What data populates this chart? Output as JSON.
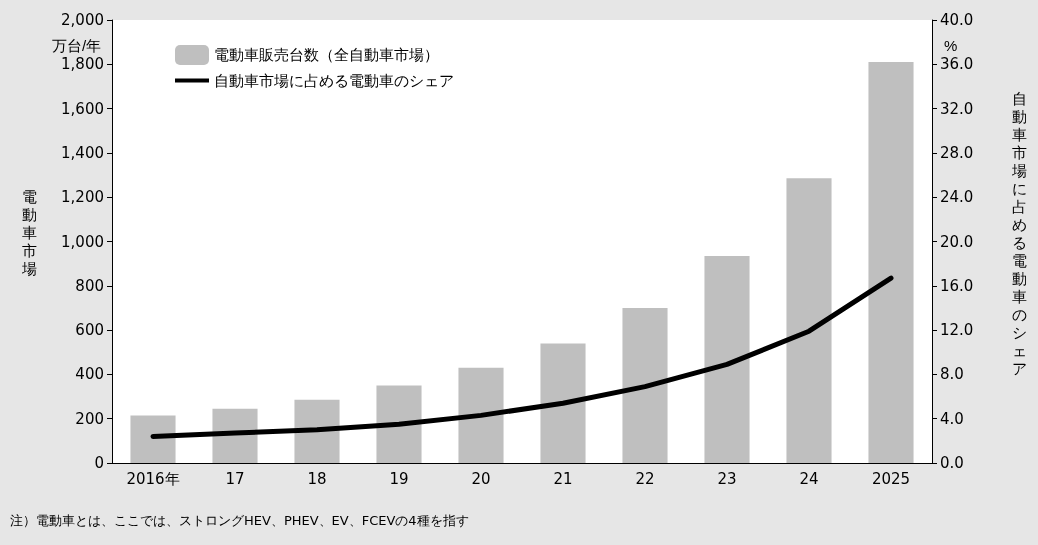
{
  "chart_data": {
    "type": "bar",
    "ylabel": "電動車市場",
    "y2label": "自動車市場に占める電動車のシェア",
    "annotations": [
      "万台/年",
      "%",
      "注）電動車とは、ここでは、ストロングHEV、PHEV、EV、FCEVの4種を指す"
    ],
    "categories": [
      "2016年",
      "17",
      "18",
      "19",
      "20",
      "21",
      "22",
      "23",
      "24",
      "2025"
    ],
    "series": [
      {
        "name": "電動車販売台数（全自動車市場）",
        "color": "#bfbfbf",
        "values": [
          215,
          245,
          285,
          350,
          430,
          540,
          700,
          935,
          1285,
          1810
        ]
      },
      {
        "name": "自動車市場に占める電動車のシェア",
        "type": "line",
        "axis": "y2",
        "color": "#000000",
        "values": [
          2.4,
          2.7,
          3.0,
          3.5,
          4.3,
          5.4,
          6.9,
          8.9,
          11.9,
          16.7
        ]
      }
    ],
    "ylim": [
      0,
      2000
    ],
    "yticks": [
      0,
      200,
      400,
      600,
      800,
      {
        "value": 1000,
        "label": "1,000"
      },
      {
        "value": 1200,
        "label": "1,200"
      },
      {
        "value": 1400,
        "label": "1,400"
      },
      {
        "value": 1600,
        "label": "1,600"
      },
      {
        "value": 1800,
        "label": "1,800"
      },
      {
        "value": 2000,
        "label": "2,000"
      }
    ],
    "y2lim": [
      0,
      40
    ],
    "y2ticks": [
      {
        "value": 0,
        "label": "0.0"
      },
      {
        "value": 4,
        "label": "4.0"
      },
      {
        "value": 8,
        "label": "8.0"
      },
      {
        "value": 12,
        "label": "12.0"
      },
      {
        "value": 16,
        "label": "16.0"
      },
      {
        "value": 20,
        "label": "20.0"
      },
      {
        "value": 24,
        "label": "24.0"
      },
      {
        "value": 28,
        "label": "28.0"
      },
      {
        "value": 32,
        "label": "32.0"
      },
      {
        "value": 36,
        "label": "36.0"
      },
      {
        "value": 40,
        "label": "40.0"
      }
    ],
    "grid": false,
    "legend": "top left",
    "marker": "none",
    "line_style": "solid"
  }
}
